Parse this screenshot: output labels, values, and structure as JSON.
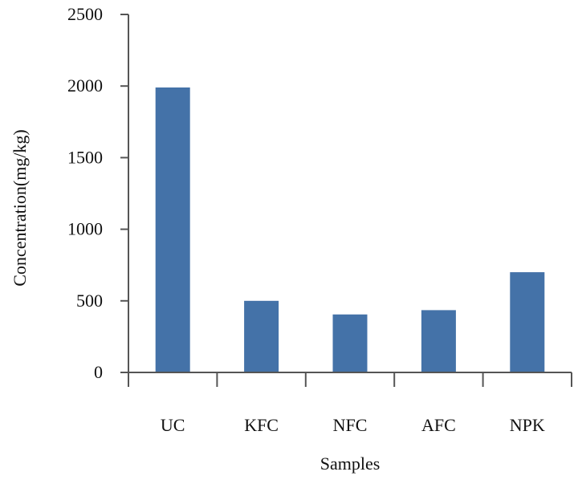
{
  "chart_data": {
    "type": "bar",
    "categories": [
      "UC",
      "KFC",
      "NFC",
      "AFC",
      "NPK"
    ],
    "values": [
      1990,
      500,
      405,
      435,
      700
    ],
    "xlabel": "Samples",
    "ylabel": "Concentration(mg/kg)",
    "ylim": [
      0,
      2500
    ],
    "yticks": [
      "0",
      "500",
      "1000",
      "1500",
      "2000",
      "2500"
    ],
    "bar_color": "#4472a8",
    "grid": false
  }
}
